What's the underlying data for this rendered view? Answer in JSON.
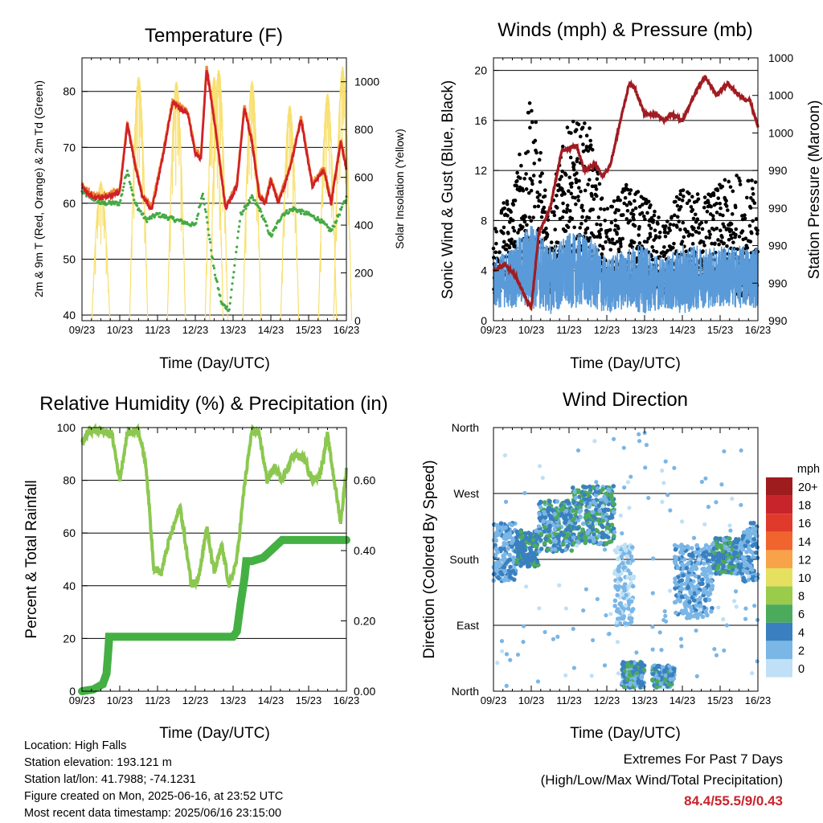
{
  "days": [
    "09/23",
    "10/23",
    "11/23",
    "12/23",
    "13/23",
    "14/23",
    "15/23",
    "16/23"
  ],
  "xlabel": "Time (Day/UTC)",
  "panels": {
    "temperature": {
      "title": "Temperature (F)",
      "ylabel_left": "2m & 9m T (Red, Orange) & 2m Td (Green)",
      "ylabel_right": "Solar Insolation (Yellow)",
      "left_ticks": [
        "40",
        "50",
        "60",
        "70",
        "80"
      ],
      "right_ticks": [
        "0",
        "200",
        "400",
        "600",
        "800",
        "1000"
      ]
    },
    "winds": {
      "title": "Winds (mph) & Pressure (mb)",
      "ylabel_left": "Sonic Wind & Gust (Blue, Black)",
      "ylabel_right": "Station Pressure (Maroon)",
      "left_ticks": [
        "0",
        "4",
        "8",
        "12",
        "16",
        "20"
      ],
      "right_ticks": [
        "990",
        "990",
        "990",
        "990",
        "990",
        "1000",
        "1000",
        "1000"
      ]
    },
    "humidity": {
      "title": "Relative Humidity (%) & Precipitation (in)",
      "ylabel_left": "Percent & Total Rainfall",
      "left_ticks": [
        "0",
        "20",
        "40",
        "60",
        "80",
        "100"
      ],
      "right_ticks": [
        "0.00",
        "0.20",
        "0.40",
        "0.60"
      ]
    },
    "direction": {
      "title": "Wind Direction",
      "ylabel_left": "Direction (Colored By Speed)",
      "left_ticks": [
        "North",
        "East",
        "South",
        "West",
        "North"
      ],
      "legend_title": "mph",
      "legend_labels": [
        "20+",
        "18",
        "16",
        "14",
        "12",
        "10",
        "8",
        "6",
        "4",
        "2",
        "0"
      ],
      "legend_colors": [
        "#9e1b1e",
        "#c8242c",
        "#e03a2c",
        "#f0642e",
        "#f8a24a",
        "#e6e060",
        "#9acb4a",
        "#4caa5c",
        "#3a80c0",
        "#7ab6e6",
        "#bfe0f6"
      ]
    }
  },
  "colors": {
    "temp_2m": "#d0202a",
    "temp_9m": "#f08a30",
    "dewpoint": "#44aa44",
    "solar": "#f8e070",
    "wind": "#5a9ad8",
    "gust": "#000000",
    "pressure": "#a01c22",
    "rh": "#8cc850",
    "precip": "#44b044"
  },
  "info": {
    "location": "Location: High Falls",
    "elevation": "Station elevation: 193.121 m",
    "latlon": "Station lat/lon: 41.7988; -74.1231",
    "created": "Figure created on Mon, 2025-06-16, at 23:52 UTC",
    "recent": "Most recent data timestamp: 2025/06/16 23:15:00"
  },
  "extremes": {
    "title": "Extremes For Past 7 Days",
    "subtitle": "(High/Low/Max Wind/Total Precipitation)",
    "values": "84.4/55.5/9/0.43"
  },
  "chart_data": [
    {
      "type": "line",
      "title": "Temperature (F)",
      "xlabel": "Time (Day/UTC)",
      "ylabel": "2m & 9m T (Red, Orange) & 2m Td (Green)",
      "ylabel_right": "Solar Insolation (Yellow)",
      "x_unit": "days since 09/23 00 UTC",
      "ylim": [
        39,
        86
      ],
      "ylim_right": [
        0,
        1100
      ],
      "grid": true,
      "series": [
        {
          "name": "2m T",
          "axis": "left",
          "x": [
            0,
            0.3,
            0.6,
            1.0,
            1.2,
            1.4,
            1.6,
            1.85,
            2.1,
            2.4,
            2.8,
            3.0,
            3.15,
            3.3,
            3.5,
            3.8,
            4.1,
            4.3,
            4.5,
            4.7,
            4.85,
            5.0,
            5.2,
            5.5,
            5.8,
            6.1,
            6.4,
            6.6,
            6.85,
            7.0
          ],
          "y": [
            63,
            61,
            61,
            62,
            74,
            67,
            61,
            59,
            67,
            78,
            76,
            69,
            68,
            84,
            75,
            59,
            63,
            77,
            71,
            61,
            60,
            64,
            60,
            66,
            75,
            63,
            66,
            60,
            71,
            66
          ]
        },
        {
          "name": "Dew Point",
          "axis": "left",
          "x": [
            0,
            0.5,
            1.0,
            1.2,
            1.4,
            1.7,
            2.0,
            2.5,
            3.0,
            3.2,
            3.5,
            3.7,
            3.9,
            4.2,
            4.5,
            4.7,
            5.0,
            5.3,
            5.6,
            6.0,
            6.3,
            6.6,
            6.8,
            7.0
          ],
          "y": [
            62,
            60,
            60,
            66,
            60,
            57,
            58,
            57,
            56,
            62,
            48,
            42,
            41,
            58,
            61,
            59,
            54,
            58,
            59,
            58,
            57,
            55,
            58,
            61
          ]
        },
        {
          "name": "Solar",
          "axis": "right",
          "peaks_x": [
            0.5,
            1.5,
            2.5,
            3.5,
            3.62,
            4.5,
            5.5,
            6.5,
            6.9
          ],
          "peaks_y": [
            580,
            1020,
            1000,
            1020,
            1050,
            1000,
            900,
            950,
            1060
          ]
        }
      ]
    },
    {
      "type": "scatter",
      "title": "Winds (mph) & Pressure (mb)",
      "xlabel": "Time (Day/UTC)",
      "ylabel": "Sonic Wind & Gust (Blue, Black)",
      "ylabel_right": "Station Pressure (Maroon)",
      "x_unit": "days since 09/23 00 UTC",
      "ylim": [
        0,
        21
      ],
      "grid": true,
      "series": [
        {
          "name": "Wind (band)",
          "axis": "left",
          "x": [
            0,
            0.5,
            1.0,
            1.5,
            2.0,
            2.5,
            3.0,
            3.5,
            4.0,
            4.5,
            5.0,
            5.5,
            6.0,
            6.5,
            7.0
          ],
          "low": [
            1,
            1,
            1,
            0.5,
            1,
            1,
            0.5,
            1,
            0.5,
            1,
            0.5,
            1,
            1,
            1,
            1
          ],
          "high": [
            5,
            6,
            8,
            6,
            7,
            7,
            5,
            6,
            6,
            5,
            6,
            6,
            6,
            6,
            6
          ]
        },
        {
          "name": "Gust (cloud)",
          "axis": "left",
          "x": [
            0,
            0.5,
            1.0,
            1.5,
            2.0,
            2.5,
            3.0,
            3.5,
            4.0,
            4.5,
            5.0,
            5.5,
            6.0,
            6.5,
            7.0
          ],
          "low": [
            2,
            3,
            4,
            2,
            5,
            6,
            2,
            3,
            3,
            2,
            2,
            3,
            3,
            2,
            2
          ],
          "high": [
            8,
            11,
            18,
            10,
            16,
            16,
            9,
            11,
            10,
            8,
            11,
            10,
            11,
            12,
            11
          ]
        },
        {
          "name": "Pressure",
          "axis": "right_normalized",
          "x": [
            0,
            0.3,
            0.6,
            0.9,
            1.0,
            1.2,
            1.5,
            1.8,
            2.2,
            2.4,
            2.7,
            2.9,
            3.1,
            3.4,
            3.6,
            3.75,
            4.0,
            4.3,
            4.5,
            4.7,
            5.0,
            5.4,
            5.6,
            5.9,
            6.2,
            6.5,
            6.8,
            7.0
          ],
          "y": [
            4.0,
            4.5,
            3.5,
            1.5,
            1.0,
            7.0,
            9.0,
            13.5,
            14.0,
            12.0,
            12.5,
            11.5,
            12.5,
            16.5,
            19.0,
            18.5,
            16.5,
            16.5,
            16.0,
            16.5,
            16.0,
            18.5,
            19.5,
            18.0,
            19.0,
            18.0,
            17.5,
            15.5
          ]
        }
      ]
    },
    {
      "type": "line",
      "title": "Relative Humidity (%) & Precipitation (in)",
      "xlabel": "Time (Day/UTC)",
      "ylabel": "Percent & Total Rainfall",
      "x_unit": "days since 09/23 00 UTC",
      "ylim": [
        0,
        100
      ],
      "ylim_right": [
        0,
        0.75
      ],
      "grid": true,
      "series": [
        {
          "name": "RH",
          "axis": "left",
          "x": [
            0,
            0.2,
            0.5,
            0.8,
            1.0,
            1.2,
            1.5,
            1.7,
            1.9,
            2.1,
            2.3,
            2.6,
            2.9,
            3.1,
            3.3,
            3.5,
            3.7,
            3.9,
            4.1,
            4.3,
            4.5,
            4.7,
            4.9,
            5.1,
            5.3,
            5.6,
            5.9,
            6.1,
            6.3,
            6.5,
            6.7,
            6.85,
            7.0
          ],
          "y": [
            94,
            99,
            99,
            97,
            80,
            98,
            99,
            85,
            47,
            45,
            57,
            70,
            40,
            44,
            62,
            45,
            55,
            40,
            50,
            78,
            99,
            97,
            80,
            85,
            80,
            90,
            88,
            80,
            82,
            97,
            78,
            64,
            84
          ]
        },
        {
          "name": "Precipitation",
          "axis": "right",
          "x": [
            0,
            0.3,
            0.55,
            0.65,
            0.7,
            0.72,
            1.0,
            1.5,
            2.0,
            2.5,
            3.0,
            3.5,
            4.0,
            4.1,
            4.2,
            4.3,
            4.35,
            4.5,
            4.8,
            5.0,
            5.3,
            5.5,
            5.8,
            6.0,
            6.5,
            7.0
          ],
          "y": [
            0,
            0.005,
            0.02,
            0.05,
            0.12,
            0.155,
            0.155,
            0.155,
            0.155,
            0.155,
            0.155,
            0.155,
            0.155,
            0.17,
            0.25,
            0.32,
            0.37,
            0.37,
            0.38,
            0.4,
            0.43,
            0.43,
            0.43,
            0.43,
            0.43,
            0.43
          ]
        }
      ]
    },
    {
      "type": "scatter",
      "title": "Wind Direction",
      "xlabel": "Time (Day/UTC)",
      "ylabel": "Direction (Colored By Speed)",
      "x_unit": "days since 09/23 00 UTC",
      "y_unit": "degrees (0=North,90=East,180=South,270=West,360=North)",
      "ylim": [
        0,
        360
      ],
      "grid": true,
      "clusters": [
        {
          "x": [
            0.0,
            0.6
          ],
          "dir": [
            150,
            230
          ],
          "speed": [
            1,
            4
          ]
        },
        {
          "x": [
            0.6,
            1.2
          ],
          "dir": [
            170,
            220
          ],
          "speed": [
            3,
            6
          ]
        },
        {
          "x": [
            1.2,
            2.1
          ],
          "dir": [
            190,
            260
          ],
          "speed": [
            2,
            6
          ]
        },
        {
          "x": [
            2.1,
            3.2
          ],
          "dir": [
            200,
            280
          ],
          "speed": [
            2,
            7
          ]
        },
        {
          "x": [
            3.2,
            3.7
          ],
          "dir": [
            90,
            200
          ],
          "speed": [
            0,
            3
          ]
        },
        {
          "x": [
            3.4,
            4.0
          ],
          "dir": [
            5,
            40
          ],
          "speed": [
            2,
            6
          ]
        },
        {
          "x": [
            4.2,
            4.8
          ],
          "dir": [
            5,
            35
          ],
          "speed": [
            2,
            6
          ]
        },
        {
          "x": [
            4.8,
            5.8
          ],
          "dir": [
            100,
            200
          ],
          "speed": [
            1,
            4
          ]
        },
        {
          "x": [
            5.8,
            6.6
          ],
          "dir": [
            160,
            210
          ],
          "speed": [
            2,
            6
          ]
        },
        {
          "x": [
            6.6,
            7.0
          ],
          "dir": [
            150,
            230
          ],
          "speed": [
            1,
            4
          ]
        }
      ]
    }
  ]
}
